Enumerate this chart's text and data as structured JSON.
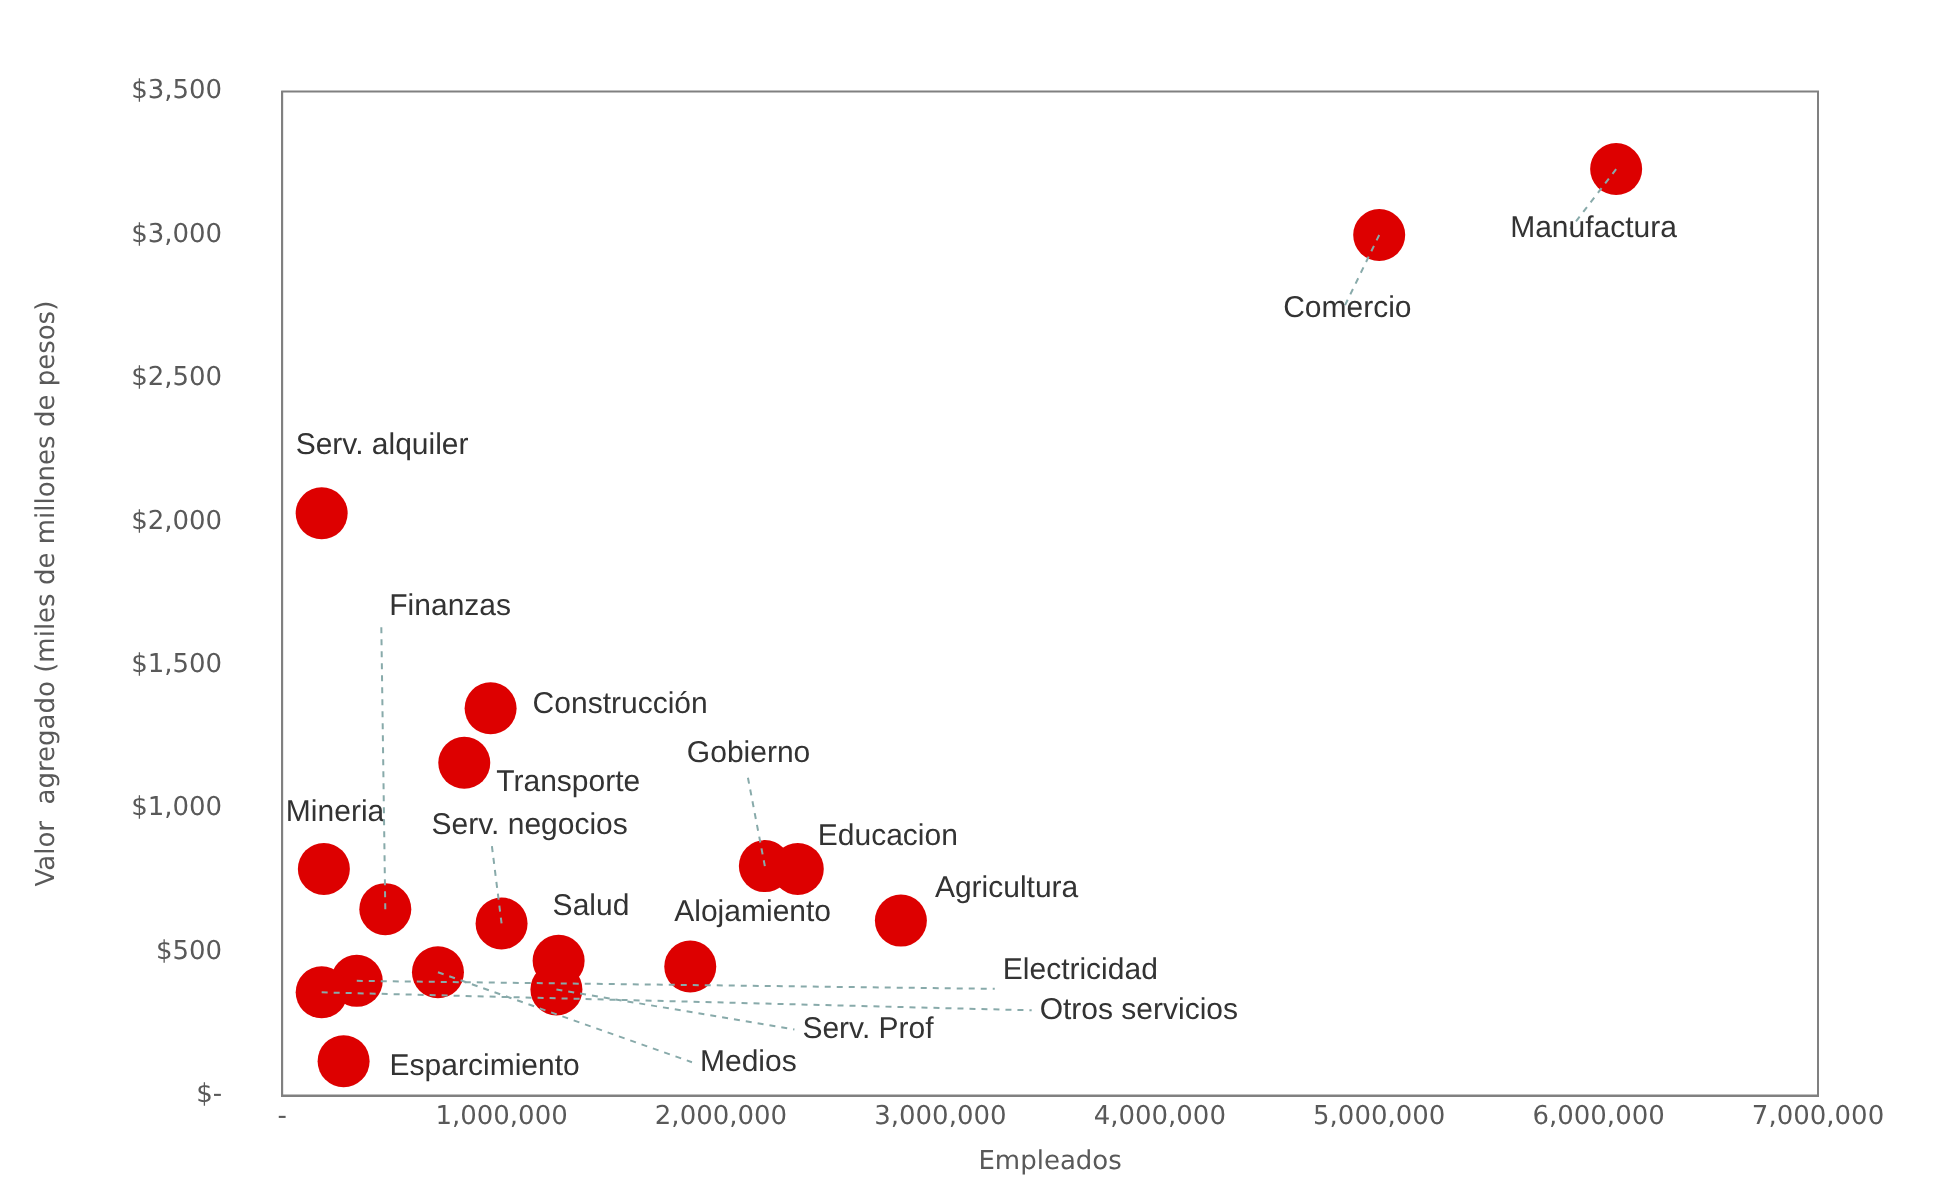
{
  "chart_data": {
    "type": "scatter",
    "xlabel": "Empleados",
    "ylabel": "Valor  agregado (miles de millones de pesos)",
    "marker": "circle",
    "grid": false,
    "legend": false,
    "xlim": [
      0,
      7000000
    ],
    "ylim": [
      0,
      3500
    ],
    "xticks": [
      {
        "value": 0,
        "label": "-"
      },
      {
        "value": 1000000,
        "label": "1,000,000"
      },
      {
        "value": 2000000,
        "label": "2,000,000"
      },
      {
        "value": 3000000,
        "label": "3,000,000"
      },
      {
        "value": 4000000,
        "label": "4,000,000"
      },
      {
        "value": 5000000,
        "label": "5,000,000"
      },
      {
        "value": 6000000,
        "label": "6,000,000"
      },
      {
        "value": 7000000,
        "label": "7,000,000"
      }
    ],
    "yticks": [
      {
        "value": 0,
        "label": "$-"
      },
      {
        "value": 500,
        "label": "$500"
      },
      {
        "value": 1000,
        "label": "$1,000"
      },
      {
        "value": 1500,
        "label": "$1,500"
      },
      {
        "value": 2000,
        "label": "$2,000"
      },
      {
        "value": 2500,
        "label": "$2,500"
      },
      {
        "value": 3000,
        "label": "$3,000"
      },
      {
        "value": 3500,
        "label": "$3,500"
      }
    ],
    "series": [
      {
        "color": "#dd0000",
        "x": [
          6080000,
          5000000,
          180000,
          950000,
          830000,
          190000,
          470000,
          1000000,
          2200000,
          2350000,
          2820000,
          1860000,
          1260000,
          1250000,
          710000,
          340000,
          180000,
          280000
        ],
        "values": [
          3230,
          3000,
          2030,
          1350,
          1160,
          790,
          650,
          600,
          800,
          790,
          610,
          450,
          470,
          370,
          430,
          400,
          360,
          120
        ]
      }
    ],
    "annotations": [
      {
        "text": "Manufactura",
        "x": 6080000,
        "y": 3230
      },
      {
        "text": "Comercio",
        "x": 5000000,
        "y": 3000
      },
      {
        "text": "Serv. alquiler",
        "x": 180000,
        "y": 2030
      },
      {
        "text": "Construcción",
        "x": 950000,
        "y": 1350
      },
      {
        "text": "Transporte",
        "x": 830000,
        "y": 1160
      },
      {
        "text": "Mineria",
        "x": 190000,
        "y": 790
      },
      {
        "text": "Finanzas",
        "x": 470000,
        "y": 650
      },
      {
        "text": "Serv. negocios",
        "x": 1000000,
        "y": 600
      },
      {
        "text": "Gobierno",
        "x": 2200000,
        "y": 800
      },
      {
        "text": "Educacion",
        "x": 2350000,
        "y": 790
      },
      {
        "text": "Agricultura",
        "x": 2820000,
        "y": 610
      },
      {
        "text": "Alojamiento",
        "x": 1860000,
        "y": 450
      },
      {
        "text": "Salud",
        "x": 1260000,
        "y": 470
      },
      {
        "text": "Serv. Prof",
        "x": 1250000,
        "y": 370
      },
      {
        "text": "Medios",
        "x": 710000,
        "y": 430
      },
      {
        "text": "Electricidad",
        "x": 340000,
        "y": 400
      },
      {
        "text": "Otros servicios",
        "x": 180000,
        "y": 360
      },
      {
        "text": "Esparcimiento",
        "x": 280000,
        "y": 120
      }
    ]
  }
}
